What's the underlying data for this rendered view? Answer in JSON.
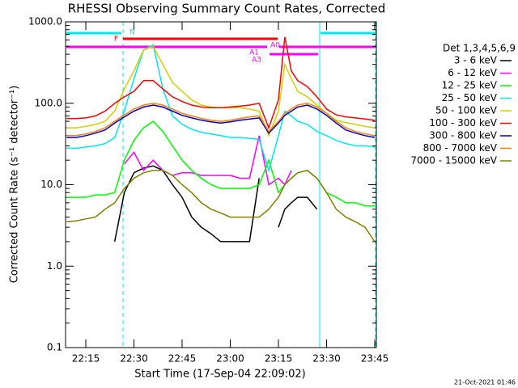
{
  "chart_data": {
    "type": "line",
    "title": "RHESSI Observing Summary Count Rates, Corrected",
    "x_label": "Start Time (17-Sep-04 22:09:02)",
    "y_label": "Corrected Count Rate (s⁻¹ detector⁻¹)",
    "legend_title": "Det 1,3,4,5,6,9",
    "footer": "21-Oct-2021 01:46",
    "flags": [
      "N",
      "F",
      "A0",
      "A1",
      "A3"
    ],
    "log_y": true,
    "legend_corner": "right",
    "xlim": [
      8.7,
      105.5
    ],
    "xticks": [
      {
        "value": 15,
        "label": "22:15"
      },
      {
        "value": 30,
        "label": "22:30"
      },
      {
        "value": 45,
        "label": "22:45"
      },
      {
        "value": 60,
        "label": "23:00"
      },
      {
        "value": 75,
        "label": "23:15"
      },
      {
        "value": 90,
        "label": "23:30"
      },
      {
        "value": 105,
        "label": "23:45"
      }
    ],
    "ylim": [
      0.1,
      1000
    ],
    "yticks": [
      {
        "value": 0.1,
        "label": "0.1"
      },
      {
        "value": 1,
        "label": "1.0"
      },
      {
        "value": 10,
        "label": "10.0"
      },
      {
        "value": 100,
        "label": "100.0"
      },
      {
        "value": 1000,
        "label": "1000.0"
      }
    ],
    "x": [
      9,
      12,
      15,
      18,
      21,
      24,
      27,
      30,
      33,
      36,
      39,
      42,
      45,
      48,
      51,
      54,
      57,
      60,
      63,
      66,
      69,
      72,
      75,
      77,
      79,
      81,
      84,
      87,
      90,
      93,
      96,
      99,
      102,
      105
    ],
    "series": [
      {
        "name": "3 - 6 keV",
        "color": "#000000",
        "values": [
          null,
          null,
          null,
          null,
          null,
          2,
          8,
          14,
          16,
          17,
          15,
          10,
          7,
          4,
          3,
          2.5,
          2,
          2,
          2,
          2,
          12,
          null,
          3,
          5,
          6,
          7,
          7,
          5,
          null,
          null,
          null,
          null,
          null,
          null
        ]
      },
      {
        "name": "6 - 12 keV",
        "color": "#ff00ff",
        "values": [
          null,
          null,
          null,
          null,
          null,
          null,
          18,
          25,
          15,
          20,
          15,
          13,
          14,
          14,
          13,
          13,
          13,
          13,
          12,
          12,
          40,
          10,
          12,
          10,
          15,
          null,
          null,
          null,
          null,
          null,
          null,
          null,
          null,
          null
        ]
      },
      {
        "name": "12 - 25 keV",
        "color": "#00ff00",
        "values": [
          7,
          7,
          7,
          7.5,
          7.5,
          8,
          20,
          35,
          50,
          60,
          45,
          30,
          20,
          15,
          12,
          10,
          9,
          9,
          9,
          9,
          10,
          20,
          8,
          10,
          12,
          14,
          15,
          12,
          8,
          7,
          6,
          6,
          5.5,
          5.5
        ]
      },
      {
        "name": "25 - 50 keV",
        "color": "#00e8e8",
        "values": [
          28,
          28,
          29,
          30,
          32,
          38,
          80,
          200,
          450,
          520,
          150,
          70,
          55,
          48,
          44,
          42,
          40,
          38,
          38,
          37,
          36,
          15,
          40,
          80,
          70,
          60,
          55,
          45,
          40,
          35,
          32,
          30,
          30,
          29
        ]
      },
      {
        "name": "50 - 100 keV",
        "color": "#d0d000",
        "values": [
          50,
          50,
          52,
          55,
          60,
          80,
          150,
          250,
          450,
          500,
          300,
          180,
          140,
          110,
          95,
          90,
          88,
          88,
          88,
          85,
          80,
          40,
          80,
          300,
          200,
          140,
          120,
          95,
          75,
          62,
          58,
          55,
          52,
          50
        ]
      },
      {
        "name": "100 - 300 keV",
        "color": "#ff0000",
        "values": [
          65,
          65,
          66,
          70,
          80,
          100,
          120,
          140,
          190,
          190,
          150,
          120,
          105,
          95,
          90,
          88,
          88,
          90,
          92,
          95,
          100,
          50,
          110,
          650,
          250,
          190,
          160,
          120,
          85,
          72,
          68,
          66,
          64,
          62
        ]
      },
      {
        "name": "300 - 800 keV",
        "color": "#0000c8",
        "values": [
          38,
          38,
          40,
          43,
          47,
          57,
          68,
          80,
          90,
          95,
          90,
          80,
          71,
          66,
          62,
          59,
          57,
          59,
          62,
          64,
          66,
          43,
          57,
          71,
          80,
          90,
          95,
          85,
          71,
          57,
          47,
          43,
          40,
          38
        ]
      },
      {
        "name": "800 - 7000 keV",
        "color": "#ff8000",
        "values": [
          40,
          40,
          42,
          45,
          50,
          60,
          72,
          85,
          95,
          100,
          95,
          85,
          75,
          70,
          65,
          62,
          60,
          62,
          65,
          68,
          70,
          45,
          60,
          75,
          85,
          95,
          100,
          90,
          75,
          60,
          50,
          45,
          42,
          40
        ]
      },
      {
        "name": "7000 - 15000 keV",
        "color": "#808000",
        "values": [
          3.5,
          3.6,
          3.8,
          4,
          5,
          6,
          9,
          12,
          14,
          15,
          15,
          13,
          10,
          8,
          6,
          5,
          4.5,
          4,
          4,
          4,
          4,
          5,
          7,
          10,
          12,
          14,
          15,
          12,
          8,
          5,
          4,
          3.5,
          3,
          2
        ]
      }
    ]
  }
}
